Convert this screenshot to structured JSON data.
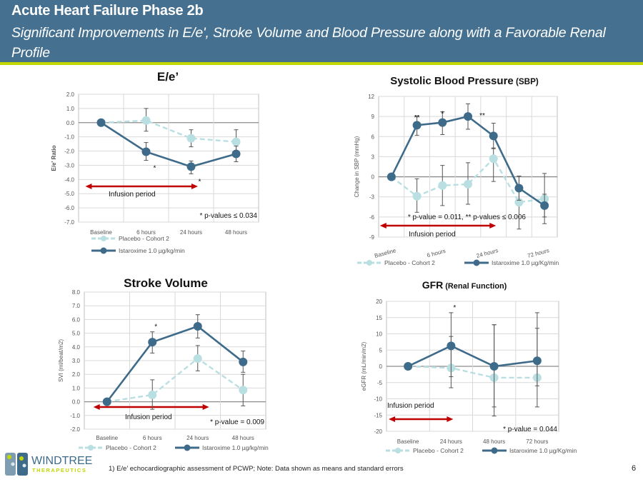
{
  "header": {
    "title": "Acute Heart Failure Phase 2b",
    "subtitle": "Significant Improvements in E/e', Stroke Volume and Blood Pressure along with a Favorable Renal Profile"
  },
  "colors": {
    "header_bg": "#45708f",
    "accent_line": "#c3d600",
    "istaroxime": "#3f6b8a",
    "placebo": "#b9dfe2",
    "infusion_arrow": "#c00000"
  },
  "footer": {
    "note": "1)    E/e’  echocardiographic assessment of PCWP; Note:  Data shown as means and standard errors",
    "page_number": "6",
    "logo_name": "WINDTREE",
    "logo_sub": "THERAPEUTICS"
  },
  "chart_data": [
    {
      "id": "ee",
      "type": "line",
      "title": "E/e’",
      "title_suffix": "",
      "xlabel": "",
      "ylabel": "E/e' Ratio",
      "ylim": [
        -7,
        2
      ],
      "yticks": [
        "2.0",
        "1.0",
        "0.0",
        "-1.0",
        "-2.0",
        "-3.0",
        "-4.0",
        "-5.0",
        "-6.0",
        "-7.0"
      ],
      "ytick_values": [
        2,
        1,
        0,
        -1,
        -2,
        -3,
        -4,
        -5,
        -6,
        -7
      ],
      "categories": [
        "Baseline",
        "6 hours",
        "24 hours",
        "48 hours"
      ],
      "category_labels": [
        "Baseline",
        "6 hours",
        "24 hours",
        "48 hours"
      ],
      "grid": true,
      "series": [
        {
          "name": "Placebo - Cohort 2",
          "style": "dashed",
          "values": [
            0,
            0.15,
            -1.1,
            -1.35
          ],
          "err_low": [
            null,
            -0.6,
            -1.7,
            -2.2
          ],
          "err_high": [
            null,
            1.0,
            -0.5,
            -0.5
          ]
        },
        {
          "name": "Istaroxime 1.0 µg/kg/min",
          "style": "solid",
          "values": [
            0,
            -2.05,
            -3.1,
            -2.2
          ],
          "err_low": [
            null,
            -2.65,
            -3.6,
            -2.75
          ],
          "err_high": [
            null,
            -1.4,
            -2.7,
            -1.65
          ]
        }
      ],
      "significance": [
        {
          "category": "6 hours",
          "mark": "*"
        },
        {
          "category": "24 hours",
          "mark": "*"
        }
      ],
      "infusion_label": "Infusion period",
      "infusion_range": [
        "Baseline",
        "24 hours"
      ],
      "pvalue_note": "* p-values ≤ 0.034",
      "legend": "bottom"
    },
    {
      "id": "sbp",
      "type": "line",
      "title": "Systolic Blood Pressure",
      "title_suffix": "(SBP)",
      "xlabel": "",
      "ylabel": "Change in SBP (mmHg)",
      "ylim": [
        -9,
        12
      ],
      "yticks": [
        "12",
        "9",
        "6",
        "3",
        "0",
        "-3",
        "-6",
        "-9"
      ],
      "ytick_values": [
        12,
        9,
        6,
        3,
        0,
        -3,
        -6,
        -9
      ],
      "categories": [
        "Baseline",
        "",
        "6 hours",
        "",
        "24 hours",
        "",
        "72 hours"
      ],
      "category_labels": [
        "Baseline",
        "6 hours",
        "24 hours",
        "72 hours"
      ],
      "grid": true,
      "series": [
        {
          "name": "Placebo - Cohort 2",
          "style": "dashed",
          "values": [
            0,
            -2.9,
            -1.3,
            -1.1,
            2.7,
            -3.8,
            -3.3
          ],
          "err_low": [
            null,
            -5.3,
            -4.3,
            -4.1,
            -0.7,
            -7.8,
            -6.0
          ],
          "err_high": [
            null,
            -0.3,
            1.7,
            2.1,
            4.3,
            0.1,
            0.5
          ]
        },
        {
          "name": "Istaroxime 1.0 µg/Kg/min",
          "style": "solid",
          "values": [
            0,
            7.7,
            8.1,
            9.0,
            6.1,
            -1.7,
            -4.3
          ],
          "err_low": [
            null,
            6.2,
            6.3,
            7.1,
            4.2,
            -3.5,
            -7.0
          ],
          "err_high": [
            null,
            9.1,
            9.7,
            10.9,
            8.0,
            0.1,
            -2.6
          ]
        }
      ],
      "significance": [
        {
          "index": 1,
          "mark": "**"
        },
        {
          "index": 2,
          "mark": "*"
        },
        {
          "index": 3,
          "mark": "**"
        }
      ],
      "infusion_label": "Infusion period",
      "pvalue_note": "* p-value = 0.011, ** p-values ≤ 0.006",
      "legend": "bottom"
    },
    {
      "id": "sv",
      "type": "line",
      "title": "Stroke Volume",
      "title_suffix": "",
      "xlabel": "",
      "ylabel": "SVI (ml/beat/m2)",
      "ylim": [
        -2,
        8
      ],
      "yticks": [
        "8.0",
        "7.0",
        "6.0",
        "5.0",
        "4.0",
        "3.0",
        "2.0",
        "1.0",
        "0.0",
        "-1.0",
        "-2.0"
      ],
      "ytick_values": [
        8,
        7,
        6,
        5,
        4,
        3,
        2,
        1,
        0,
        -1,
        -2
      ],
      "categories": [
        "Baseline",
        "6 hours",
        "24 hours",
        "48 hours"
      ],
      "category_labels": [
        "Baseline",
        "6 hours",
        "24 hours",
        "48 hours"
      ],
      "grid": true,
      "series": [
        {
          "name": "Placebo - Cohort 2",
          "style": "dashed",
          "values": [
            0,
            0.5,
            3.15,
            0.85
          ],
          "err_low": [
            null,
            -0.55,
            2.25,
            -0.3
          ],
          "err_high": [
            null,
            1.6,
            4.1,
            2.0
          ]
        },
        {
          "name": "Istaroxime 1.0 µg/kg/min",
          "style": "solid",
          "values": [
            0,
            4.35,
            5.5,
            2.9
          ],
          "err_low": [
            null,
            3.55,
            4.65,
            2.15
          ],
          "err_high": [
            null,
            5.1,
            6.35,
            3.7
          ]
        }
      ],
      "significance": [
        {
          "category": "6 hours",
          "mark": "*"
        }
      ],
      "infusion_label": "Infusion period",
      "pvalue_note": "* p-value = 0.009",
      "legend": "bottom"
    },
    {
      "id": "gfr",
      "type": "line",
      "title": "GFR",
      "title_suffix": "(Renal Function)",
      "xlabel": "",
      "ylabel": "eGFR (mL/min/m2)",
      "ylim": [
        -20,
        20
      ],
      "yticks": [
        "20",
        "15",
        "10",
        "5",
        "0",
        "-5",
        "-10",
        "-15",
        "-20"
      ],
      "ytick_values": [
        20,
        15,
        10,
        5,
        0,
        -5,
        -10,
        -15,
        -20
      ],
      "categories": [
        "Baseline",
        "24 hours",
        "48 hours",
        "72 hours"
      ],
      "category_labels": [
        "Baseline",
        "24 hours",
        "48 hours",
        "72 hours"
      ],
      "grid": true,
      "series": [
        {
          "name": "Placebo - Cohort 2",
          "style": "dashed",
          "values": [
            0,
            -0.5,
            -3.5,
            -3.5
          ],
          "err_low": [
            null,
            -3.2,
            -15.3,
            -12.5
          ],
          "err_high": [
            null,
            9.2,
            12.8,
            11.7
          ]
        },
        {
          "name": "Istaroxime 1.0 µg/Kg/min",
          "style": "solid",
          "values": [
            0,
            6.3,
            0,
            1.7
          ],
          "err_low": [
            null,
            -6.6,
            -12.5,
            -6.0
          ],
          "err_high": [
            null,
            16.5,
            12.8,
            16.5
          ]
        }
      ],
      "significance": [
        {
          "category": "24 hours",
          "mark": "*"
        }
      ],
      "infusion_label": "Infusion period",
      "pvalue_note": "* p-value = 0.044",
      "legend": "bottom"
    }
  ]
}
